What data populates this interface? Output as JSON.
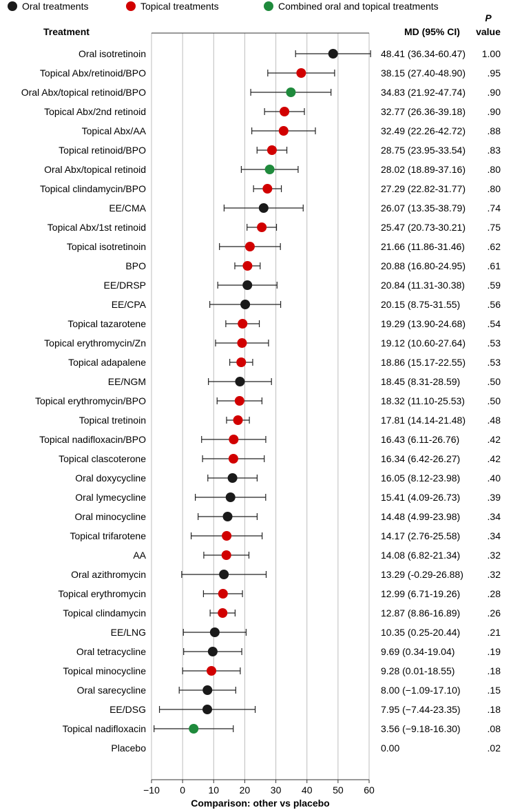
{
  "legend": {
    "oral": "Oral treatments",
    "topical": "Topical treatments",
    "combined": "Combined oral and topical treatments"
  },
  "headers": {
    "treatment": "Treatment",
    "md": "MD (95% CI)",
    "p_line1": "P",
    "p_line2": "value"
  },
  "colors": {
    "oral": "#1a1a1a",
    "topical": "#d10000",
    "combined": "#1f8a3c",
    "grid": "#bdbdbd",
    "axis": "#333333"
  },
  "chart_data": {
    "type": "forest",
    "xlabel": "Comparison: other vs placebo",
    "xlim": [
      -10,
      60
    ],
    "xticks": [
      "−10",
      "0",
      "10",
      "20",
      "30",
      "40",
      "50",
      "60"
    ],
    "xtick_values": [
      -10,
      0,
      10,
      20,
      30,
      40,
      50,
      60
    ],
    "grid": true,
    "legend_position": "top",
    "rows": [
      {
        "name": "Oral isotretinoin",
        "group": "oral",
        "md": 48.41,
        "lo": 36.34,
        "hi": 60.47,
        "ci": "48.41 (36.34-60.47)",
        "p": "1.00"
      },
      {
        "name": "Topical Abx/retinoid/BPO",
        "group": "topical",
        "md": 38.15,
        "lo": 27.4,
        "hi": 48.9,
        "ci": "38.15 (27.40-48.90)",
        "p": ".95"
      },
      {
        "name": "Oral Abx/topical retinoid/BPO",
        "group": "combined",
        "md": 34.83,
        "lo": 21.92,
        "hi": 47.74,
        "ci": "34.83 (21.92-47.74)",
        "p": ".90"
      },
      {
        "name": "Topical Abx/2nd retinoid",
        "group": "topical",
        "md": 32.77,
        "lo": 26.36,
        "hi": 39.18,
        "ci": "32.77 (26.36-39.18)",
        "p": ".90"
      },
      {
        "name": "Topical Abx/AA",
        "group": "topical",
        "md": 32.49,
        "lo": 22.26,
        "hi": 42.72,
        "ci": "32.49 (22.26-42.72)",
        "p": ".88"
      },
      {
        "name": "Topical retinoid/BPO",
        "group": "topical",
        "md": 28.75,
        "lo": 23.95,
        "hi": 33.54,
        "ci": "28.75 (23.95-33.54)",
        "p": ".83"
      },
      {
        "name": "Oral Abx/topical retinoid",
        "group": "combined",
        "md": 28.02,
        "lo": 18.89,
        "hi": 37.16,
        "ci": "28.02 (18.89-37.16)",
        "p": ".80"
      },
      {
        "name": "Topical clindamycin/BPO",
        "group": "topical",
        "md": 27.29,
        "lo": 22.82,
        "hi": 31.77,
        "ci": "27.29 (22.82-31.77)",
        "p": ".80"
      },
      {
        "name": "EE/CMA",
        "group": "oral",
        "md": 26.07,
        "lo": 13.35,
        "hi": 38.79,
        "ci": "26.07 (13.35-38.79)",
        "p": ".74"
      },
      {
        "name": "Topical Abx/1st retinoid",
        "group": "topical",
        "md": 25.47,
        "lo": 20.73,
        "hi": 30.21,
        "ci": "25.47 (20.73-30.21)",
        "p": ".75"
      },
      {
        "name": "Topical isotretinoin",
        "group": "topical",
        "md": 21.66,
        "lo": 11.86,
        "hi": 31.46,
        "ci": "21.66 (11.86-31.46)",
        "p": ".62"
      },
      {
        "name": "BPO",
        "group": "topical",
        "md": 20.88,
        "lo": 16.8,
        "hi": 24.95,
        "ci": "20.88 (16.80-24.95)",
        "p": ".61"
      },
      {
        "name": "EE/DRSP",
        "group": "oral",
        "md": 20.84,
        "lo": 11.31,
        "hi": 30.38,
        "ci": "20.84 (11.31-30.38)",
        "p": ".59"
      },
      {
        "name": "EE/CPA",
        "group": "oral",
        "md": 20.15,
        "lo": 8.75,
        "hi": 31.55,
        "ci": "20.15 (8.75-31.55)",
        "p": ".56"
      },
      {
        "name": "Topical tazarotene",
        "group": "topical",
        "md": 19.29,
        "lo": 13.9,
        "hi": 24.68,
        "ci": "19.29 (13.90-24.68)",
        "p": ".54"
      },
      {
        "name": "Topical erythromycin/Zn",
        "group": "topical",
        "md": 19.12,
        "lo": 10.6,
        "hi": 27.64,
        "ci": "19.12 (10.60-27.64)",
        "p": ".53"
      },
      {
        "name": "Topical adapalene",
        "group": "topical",
        "md": 18.86,
        "lo": 15.17,
        "hi": 22.55,
        "ci": "18.86 (15.17-22.55)",
        "p": ".53"
      },
      {
        "name": "EE/NGM",
        "group": "oral",
        "md": 18.45,
        "lo": 8.31,
        "hi": 28.59,
        "ci": "18.45 (8.31-28.59)",
        "p": ".50"
      },
      {
        "name": "Topical erythromycin/BPO",
        "group": "topical",
        "md": 18.32,
        "lo": 11.1,
        "hi": 25.53,
        "ci": "18.32 (11.10-25.53)",
        "p": ".50"
      },
      {
        "name": "Topical tretinoin",
        "group": "topical",
        "md": 17.81,
        "lo": 14.14,
        "hi": 21.48,
        "ci": "17.81 (14.14-21.48)",
        "p": ".48"
      },
      {
        "name": "Topical nadifloxacin/BPO",
        "group": "topical",
        "md": 16.43,
        "lo": 6.11,
        "hi": 26.76,
        "ci": "16.43 (6.11-26.76)",
        "p": ".42"
      },
      {
        "name": "Topical clascoterone",
        "group": "topical",
        "md": 16.34,
        "lo": 6.42,
        "hi": 26.27,
        "ci": "16.34 (6.42-26.27)",
        "p": ".42"
      },
      {
        "name": "Oral doxycycline",
        "group": "oral",
        "md": 16.05,
        "lo": 8.12,
        "hi": 23.98,
        "ci": "16.05 (8.12-23.98)",
        "p": ".40"
      },
      {
        "name": "Oral lymecycline",
        "group": "oral",
        "md": 15.41,
        "lo": 4.09,
        "hi": 26.73,
        "ci": "15.41 (4.09-26.73)",
        "p": ".39"
      },
      {
        "name": "Oral minocycline",
        "group": "oral",
        "md": 14.48,
        "lo": 4.99,
        "hi": 23.98,
        "ci": "14.48 (4.99-23.98)",
        "p": ".34"
      },
      {
        "name": "Topical trifarotene",
        "group": "topical",
        "md": 14.17,
        "lo": 2.76,
        "hi": 25.58,
        "ci": "14.17 (2.76-25.58)",
        "p": ".34"
      },
      {
        "name": "AA",
        "group": "topical",
        "md": 14.08,
        "lo": 6.82,
        "hi": 21.34,
        "ci": "14.08 (6.82-21.34)",
        "p": ".32"
      },
      {
        "name": "Oral azithromycin",
        "group": "oral",
        "md": 13.29,
        "lo": -0.29,
        "hi": 26.88,
        "ci": "13.29 (-0.29-26.88)",
        "p": ".32"
      },
      {
        "name": "Topical erythromycin",
        "group": "topical",
        "md": 12.99,
        "lo": 6.71,
        "hi": 19.26,
        "ci": "12.99 (6.71-19.26)",
        "p": ".28"
      },
      {
        "name": "Topical clindamycin",
        "group": "topical",
        "md": 12.87,
        "lo": 8.86,
        "hi": 16.89,
        "ci": "12.87 (8.86-16.89)",
        "p": ".26"
      },
      {
        "name": "EE/LNG",
        "group": "oral",
        "md": 10.35,
        "lo": 0.25,
        "hi": 20.44,
        "ci": "10.35 (0.25-20.44)",
        "p": ".21"
      },
      {
        "name": "Oral tetracycline",
        "group": "oral",
        "md": 9.69,
        "lo": 0.34,
        "hi": 19.04,
        "ci": "9.69 (0.34-19.04)",
        "p": ".19"
      },
      {
        "name": "Topical minocycline",
        "group": "topical",
        "md": 9.28,
        "lo": 0.01,
        "hi": 18.55,
        "ci": "9.28 (0.01-18.55)",
        "p": ".18"
      },
      {
        "name": "Oral sarecycline",
        "group": "oral",
        "md": 8.0,
        "lo": -1.09,
        "hi": 17.1,
        "ci": "8.00 (−1.09-17.10)",
        "p": ".15"
      },
      {
        "name": "EE/DSG",
        "group": "oral",
        "md": 7.95,
        "lo": -7.44,
        "hi": 23.35,
        "ci": "7.95 (−7.44-23.35)",
        "p": ".18"
      },
      {
        "name": "Topical nadifloxacin",
        "group": "combined",
        "md": 3.56,
        "lo": -9.18,
        "hi": 16.3,
        "ci": "3.56 (−9.18-16.30)",
        "p": ".08"
      },
      {
        "name": "Placebo",
        "group": "none",
        "md": 0.0,
        "lo": null,
        "hi": null,
        "ci": "0.00",
        "p": ".02"
      }
    ]
  }
}
